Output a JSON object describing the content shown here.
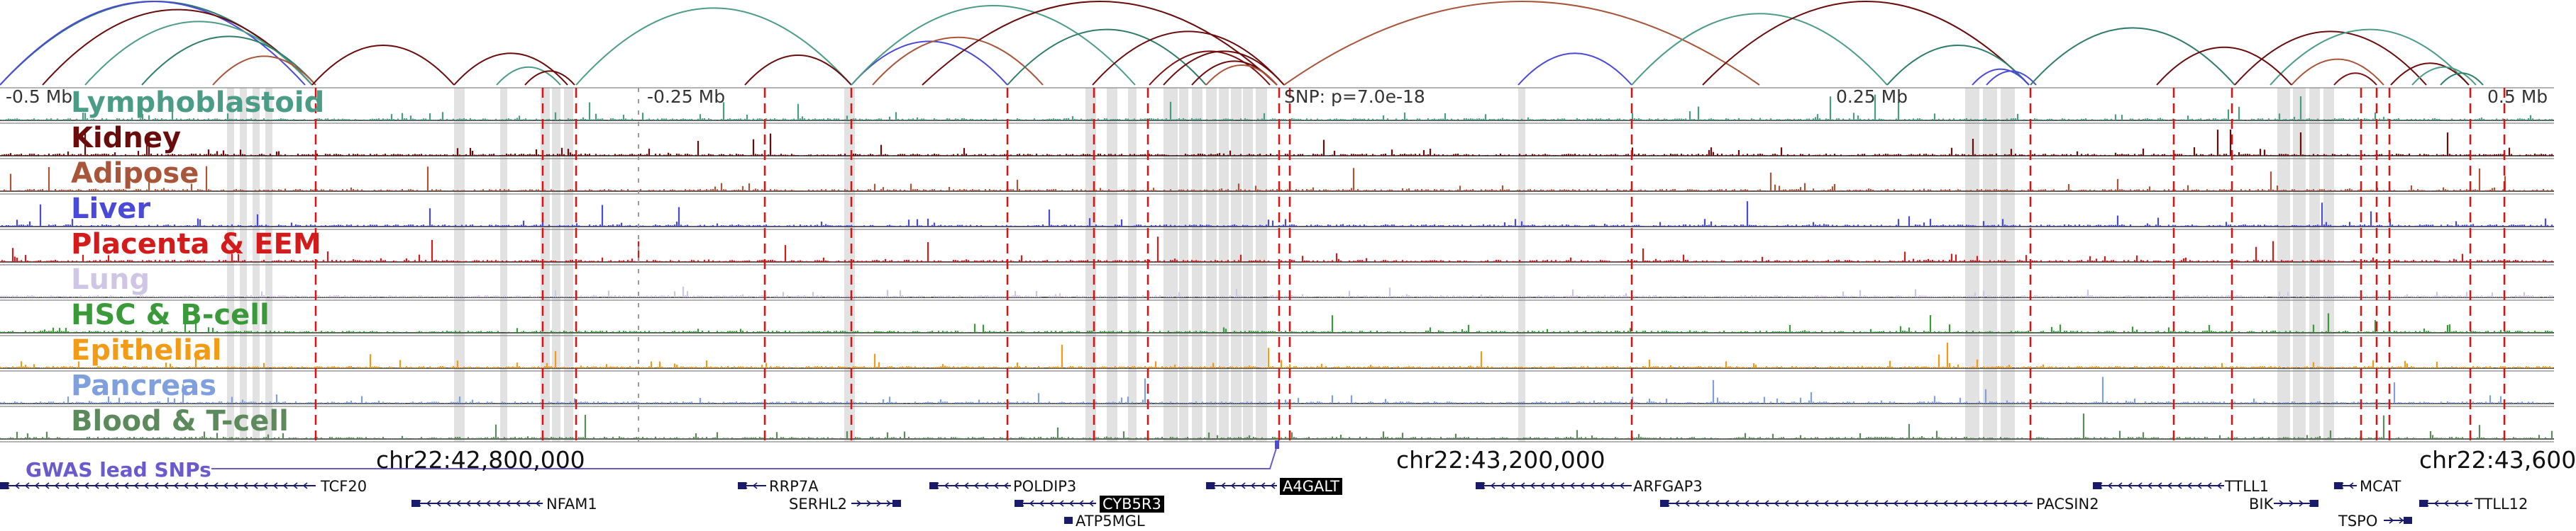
{
  "ruler": {
    "m05": "-0.5 Mb",
    "m025": "-0.25 Mb",
    "snp": "SNP: p=7.0e-18",
    "p025": "0.25 Mb",
    "p05": "0.5 Mb"
  },
  "tracks": [
    {
      "id": "lymphoblastoid",
      "label": "Lymphoblastoid",
      "color": "#4b9c86"
    },
    {
      "id": "kidney",
      "label": "Kidney",
      "color": "#6b0c0c"
    },
    {
      "id": "adipose",
      "label": "Adipose",
      "color": "#a8553a"
    },
    {
      "id": "liver",
      "label": "Liver",
      "color": "#4a4ad8"
    },
    {
      "id": "placenta",
      "label": "Placenta & EEM",
      "color": "#d41b1b"
    },
    {
      "id": "lung",
      "label": "Lung",
      "color": "#cfc6e6"
    },
    {
      "id": "hsc",
      "label": "HSC & B-cell",
      "color": "#3a9a3a"
    },
    {
      "id": "epithelial",
      "label": "Epithelial",
      "color": "#f39b14"
    },
    {
      "id": "pancreas",
      "label": "Pancreas",
      "color": "#7f9fdd"
    },
    {
      "id": "blood",
      "label": "Blood & T-cell",
      "color": "#5c8a5c"
    }
  ],
  "chrom_labels": {
    "c1": "chr22:42,800,000",
    "c2": "chr22:43,200,000",
    "c3": "chr22:43,600"
  },
  "gwas_label": "GWAS lead SNPs",
  "genes": {
    "TCF20": "TCF20",
    "NFAM1": "NFAM1",
    "RRP7A": "RRP7A",
    "SERHL2": "SERHL2",
    "POLDIP3": "POLDIP3",
    "CYB5R3": "CYB5R3",
    "ATP5MGL": "ATP5MGL",
    "A4GALT": "A4GALT",
    "ARFGAP3": "ARFGAP3",
    "PACSIN2": "PACSIN2",
    "TTLL1": "TTLL1",
    "BIK": "BIK",
    "MCAT": "MCAT",
    "TSPO": "TSPO",
    "TTLL12": "TTLL12"
  }
}
